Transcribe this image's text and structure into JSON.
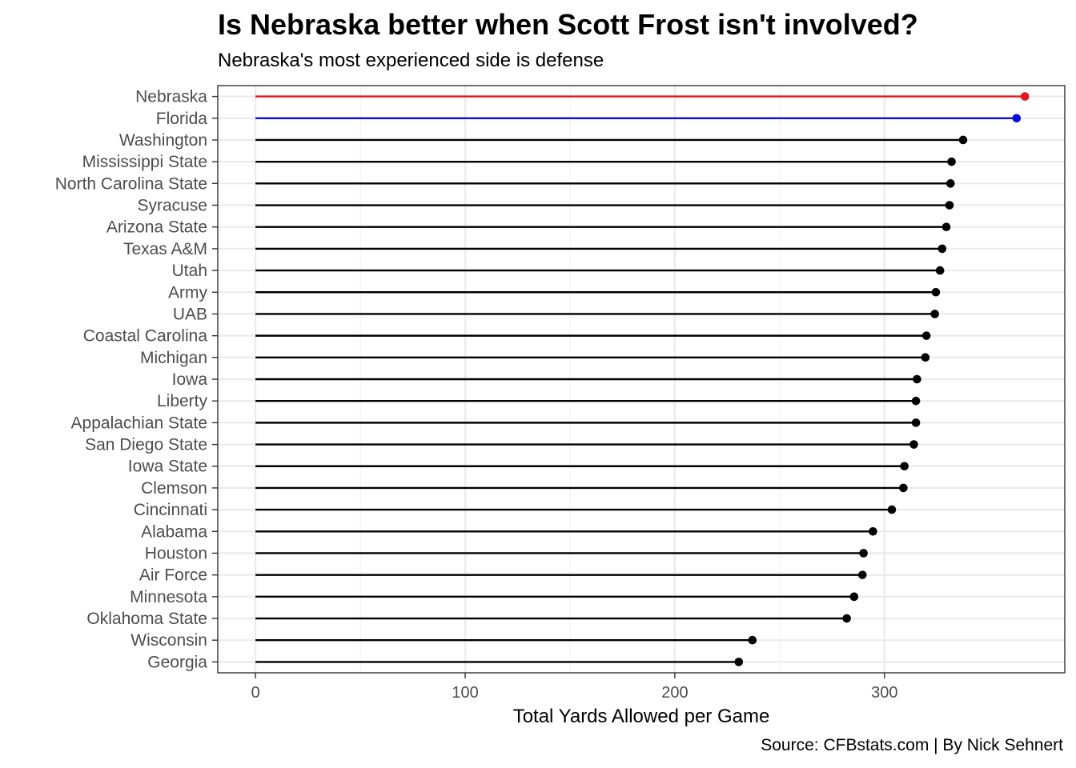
{
  "chart_data": {
    "type": "lollipop",
    "title": "Is Nebraska better when Scott Frost isn't involved?",
    "subtitle": "Nebraska's most experienced side is defense",
    "xlabel": "Total Yards Allowed per Game",
    "ylabel": "",
    "caption": "Source: CFBstats.com | By Nick Sehnert",
    "xlim": [
      -18,
      386
    ],
    "x_ticks": [
      0,
      100,
      200,
      300
    ],
    "grid": true,
    "default_color": "#000000",
    "categories": [
      "Nebraska",
      "Florida",
      "Washington",
      "Mississippi State",
      "North Carolina State",
      "Syracuse",
      "Arizona State",
      "Texas A&M",
      "Utah",
      "Army",
      "UAB",
      "Coastal Carolina",
      "Michigan",
      "Iowa",
      "Liberty",
      "Appalachian State",
      "San Diego State",
      "Iowa State",
      "Clemson",
      "Cincinnati",
      "Alabama",
      "Houston",
      "Air Force",
      "Minnesota",
      "Oklahoma State",
      "Wisconsin",
      "Georgia"
    ],
    "values": [
      367.0,
      363.0,
      337.5,
      332.0,
      331.5,
      331.0,
      329.5,
      327.5,
      326.5,
      324.5,
      324.0,
      320.0,
      319.5,
      315.5,
      315.0,
      315.0,
      314.0,
      309.5,
      309.0,
      303.5,
      294.5,
      290.0,
      289.5,
      285.5,
      282.0,
      237.0,
      230.5
    ],
    "highlights": [
      {
        "category": "Nebraska",
        "color": "#e8141c"
      },
      {
        "category": "Florida",
        "color": "#0a0ae0"
      }
    ]
  }
}
